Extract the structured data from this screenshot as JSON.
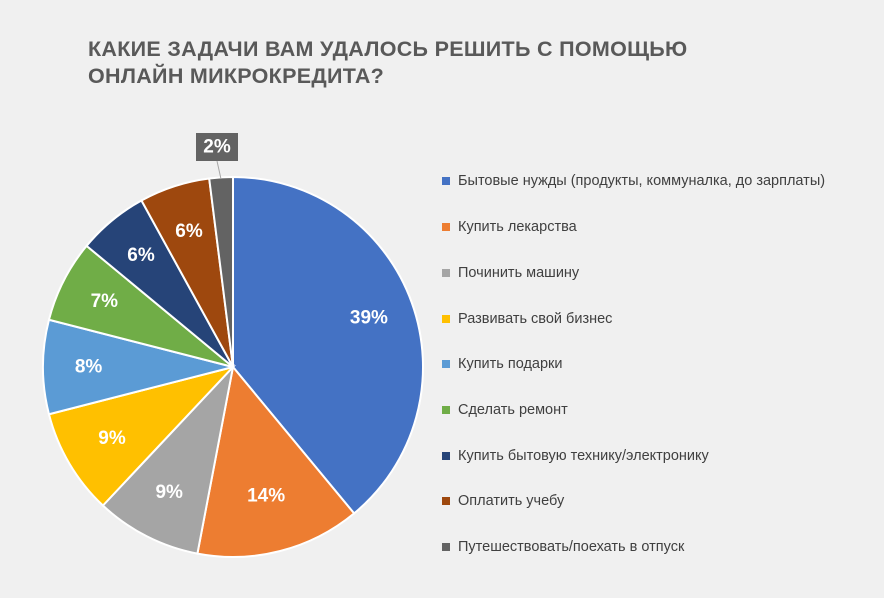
{
  "title": {
    "line1": "КАКИЕ ЗАДАЧИ ВАМ УДАЛОСЬ РЕШИТЬ С ПОМОЩЬЮ",
    "line2": "ОНЛАЙН МИКРОКРЕДИТА?"
  },
  "chart_data": {
    "type": "pie",
    "title": "КАКИЕ ЗАДАЧИ ВАМ УДАЛОСЬ РЕШИТЬ С ПОМОЩЬЮ ОНЛАЙН МИКРОКРЕДИТА?",
    "legend_position": "right",
    "slices": [
      {
        "name": "Бытовые нужды (продукты, коммуналка, до зарплаты)",
        "value": 39,
        "label": "39%",
        "color": "#4472c4"
      },
      {
        "name": "Купить лекарства",
        "value": 14,
        "label": "14%",
        "color": "#ed7d31"
      },
      {
        "name": "Починить машину",
        "value": 9,
        "label": "9%",
        "color": "#a5a5a5"
      },
      {
        "name": "Развивать свой бизнес",
        "value": 9,
        "label": "9%",
        "color": "#ffc000"
      },
      {
        "name": "Купить подарки",
        "value": 8,
        "label": "8%",
        "color": "#5b9bd5"
      },
      {
        "name": "Сделать ремонт",
        "value": 7,
        "label": "7%",
        "color": "#70ad47"
      },
      {
        "name": "Купить бытовую технику/электронику",
        "value": 6,
        "label": "6%",
        "color": "#264478"
      },
      {
        "name": "Оплатить учебу",
        "value": 6,
        "label": "6%",
        "color": "#9e480e"
      },
      {
        "name": "Путешествовать/поехать в отпуск",
        "value": 2,
        "label": "2%",
        "color": "#636363"
      }
    ]
  }
}
